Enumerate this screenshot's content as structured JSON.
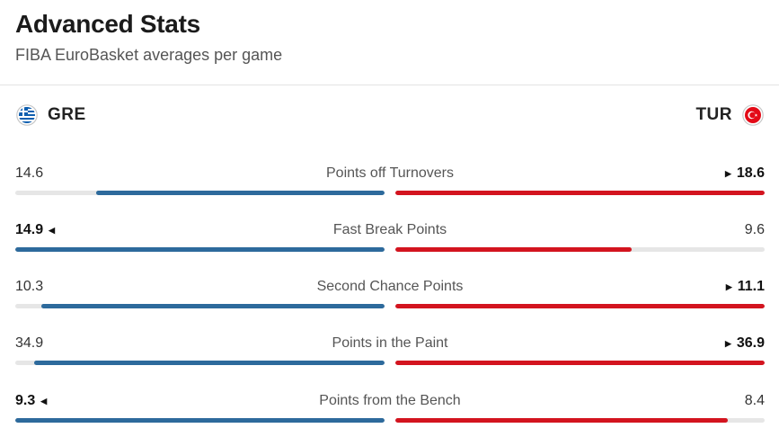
{
  "header": {
    "title": "Advanced Stats",
    "subtitle": "FIBA EuroBasket averages per game"
  },
  "teams": {
    "home": {
      "code": "GRE",
      "flag_icon": "greece-flag-icon",
      "color": "#2d6a9c"
    },
    "away": {
      "code": "TUR",
      "flag_icon": "turkey-flag-icon",
      "color": "#d3141f"
    }
  },
  "stats": [
    {
      "label": "Points off Turnovers",
      "home": "14.6",
      "away": "18.6",
      "home_fill": 0.78,
      "away_fill": 1.0,
      "leader": "away"
    },
    {
      "label": "Fast Break Points",
      "home": "14.9",
      "away": "9.6",
      "home_fill": 1.0,
      "away_fill": 0.64,
      "leader": "home"
    },
    {
      "label": "Second Chance Points",
      "home": "10.3",
      "away": "11.1",
      "home_fill": 0.93,
      "away_fill": 1.0,
      "leader": "away"
    },
    {
      "label": "Points in the Paint",
      "home": "34.9",
      "away": "36.9",
      "home_fill": 0.95,
      "away_fill": 1.0,
      "leader": "away"
    },
    {
      "label": "Points from the Bench",
      "home": "9.3",
      "away": "8.4",
      "home_fill": 1.0,
      "away_fill": 0.9,
      "leader": "home"
    }
  ]
}
